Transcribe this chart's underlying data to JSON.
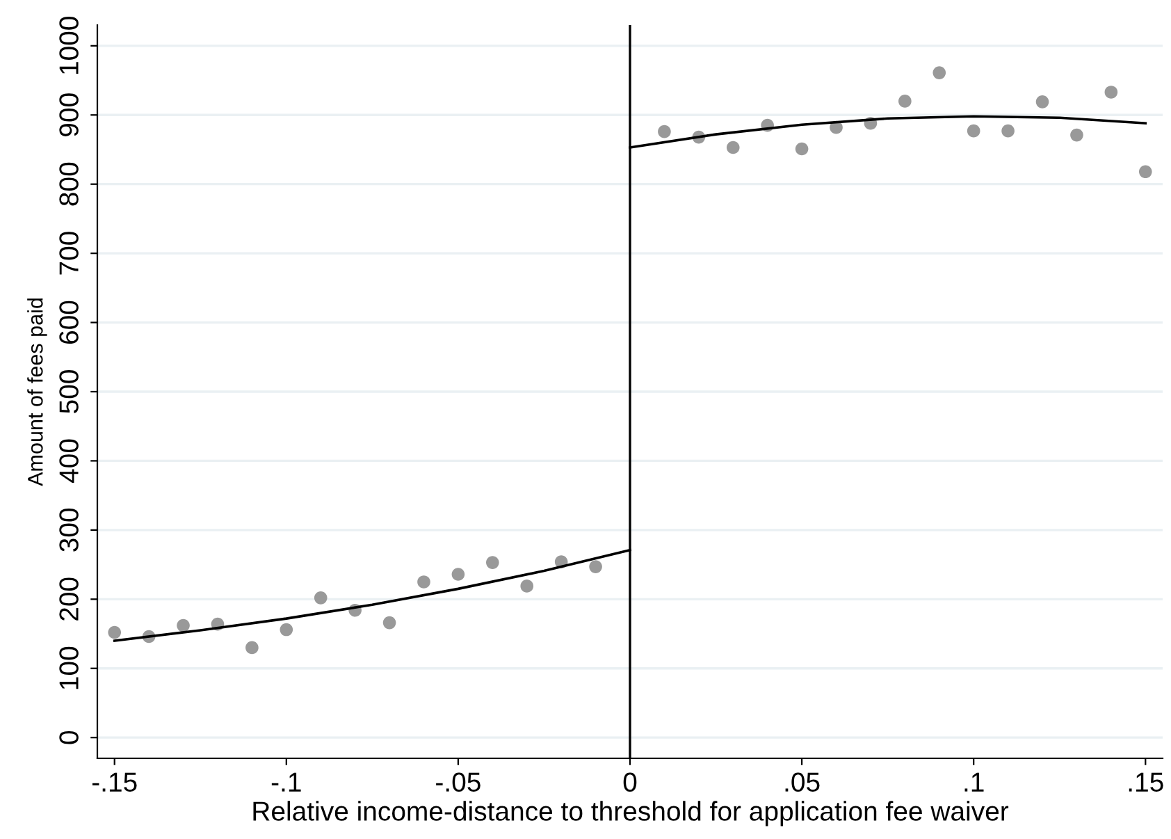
{
  "chart_data": {
    "type": "scatter",
    "xlabel": "Relative income-distance to threshold for application fee waiver",
    "ylabel": "Amount of fees paid",
    "xlim": [
      -0.155,
      0.155
    ],
    "ylim": [
      -30,
      1030
    ],
    "xticks": [
      {
        "value": -0.15,
        "label": "-.15"
      },
      {
        "value": -0.1,
        "label": "-.1"
      },
      {
        "value": -0.05,
        "label": "-.05"
      },
      0,
      {
        "value": 0.05,
        "label": ".05"
      },
      {
        "value": 0.1,
        "label": ".1"
      },
      {
        "value": 0.15,
        "label": ".15"
      }
    ],
    "yticks": [
      0,
      100,
      200,
      300,
      400,
      500,
      600,
      700,
      800,
      900,
      1000
    ],
    "grid": "y",
    "marker": "circle",
    "ref_lines": [
      {
        "axis": "x",
        "value": 0,
        "color": "#000000"
      }
    ],
    "series": [
      {
        "color": "#999999",
        "x": [
          -0.15,
          -0.14,
          -0.13,
          -0.12,
          -0.11,
          -0.1,
          -0.09,
          -0.08,
          -0.07,
          -0.06,
          -0.05,
          -0.04,
          -0.03,
          -0.02,
          -0.01
        ],
        "values": [
          152,
          146,
          162,
          164,
          130,
          156,
          202,
          184,
          166,
          225,
          236,
          253,
          219,
          254,
          247
        ]
      },
      {
        "color": "#999999",
        "x": [
          0.01,
          0.02,
          0.03,
          0.04,
          0.05,
          0.06,
          0.07,
          0.08,
          0.09,
          0.1,
          0.11,
          0.12,
          0.13,
          0.14,
          0.15
        ],
        "values": [
          876,
          868,
          853,
          885,
          851,
          882,
          888,
          920,
          961,
          877,
          877,
          919,
          871,
          933,
          818
        ]
      },
      {
        "type": "line",
        "color": "#000000",
        "marker": "none",
        "x": [
          -0.15,
          -0.125,
          -0.1,
          -0.075,
          -0.05,
          -0.025,
          0
        ],
        "values": [
          140,
          155,
          172,
          192,
          215,
          241,
          271
        ]
      },
      {
        "type": "line",
        "color": "#000000",
        "marker": "none",
        "x": [
          0,
          0.025,
          0.05,
          0.075,
          0.1,
          0.125,
          0.15
        ],
        "values": [
          853,
          872,
          886,
          895,
          898,
          896,
          888
        ]
      }
    ]
  }
}
